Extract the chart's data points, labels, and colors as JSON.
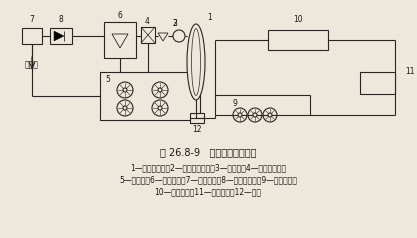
{
  "title": "图 26.8-9   气压罐定压原理图",
  "caption_line1": "1—囊式气压罐；2—电接点压力表；3—安全阀；4—泄水电磁鄀；",
  "caption_line2": "5—补水泵；6—软化水筱；7—软化设备；8—倒流防止器；9—循环水泵；",
  "caption_line3": "10—末端用户；11—冷、热源；12—水表",
  "label_water": "接给水",
  "bg_color": "#ede8dc",
  "line_color": "#2a2520",
  "font_color": "#1a1510"
}
